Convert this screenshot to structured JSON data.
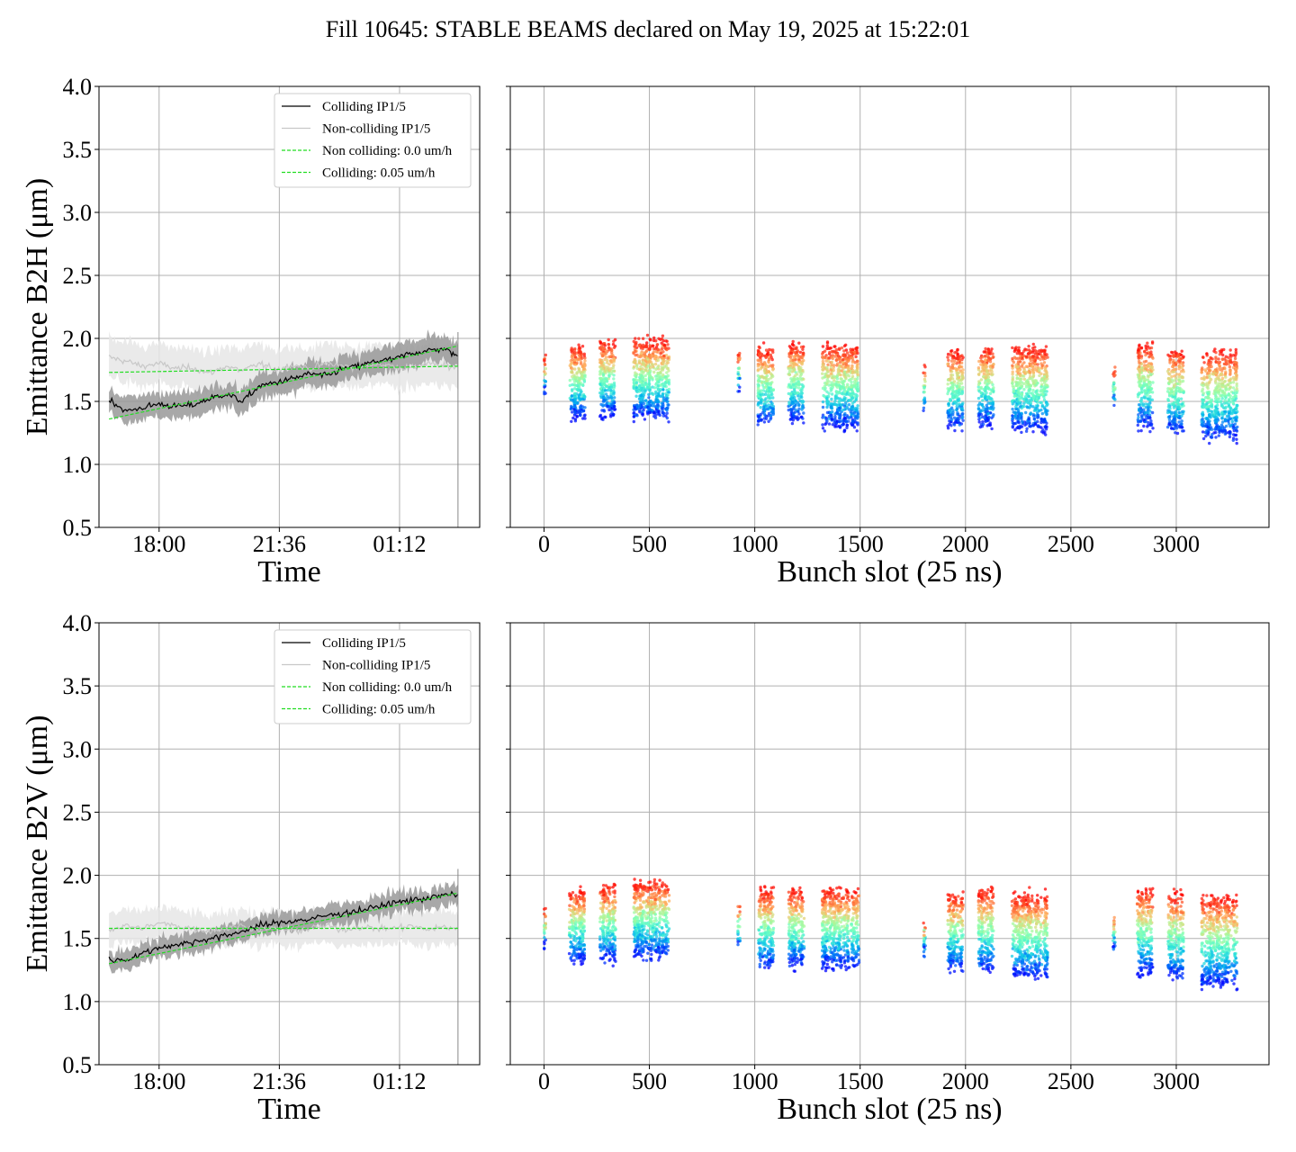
{
  "title": "Fill 10645: STABLE BEAMS declared on May 19, 2025 at 15:22:01",
  "colors": {
    "colliding": "#000000",
    "non_colliding": "#c8c8c8",
    "fit": "#22dd22",
    "band_colliding": "#999999",
    "band_non_colliding": "#e6e6e6",
    "grid": "#b0b0b0"
  },
  "chart_data": [
    {
      "type": "line",
      "panel": "top-left",
      "xlabel": "Time",
      "ylabel": "Emittance B2H (μm)",
      "x_ticks": [
        "18:00",
        "21:36",
        "01:12"
      ],
      "x_tick_positions_hours": [
        18.0,
        21.6,
        25.2
      ],
      "xlim_hours": [
        16.2,
        27.6
      ],
      "ylim": [
        0.5,
        4.0
      ],
      "y_ticks": [
        "0.5",
        "1.0",
        "1.5",
        "2.0",
        "2.5",
        "3.0",
        "3.5",
        "4.0"
      ],
      "grid": true,
      "legend_position": "top-right",
      "legend": [
        "Colliding IP1/5",
        "Non-colliding IP1/5",
        "Non colliding: 0.0 um/h",
        "Colliding: 0.05 um/h"
      ],
      "colliding": {
        "x_hours": [
          16.5,
          17.0,
          17.5,
          18.0,
          18.5,
          19.0,
          19.5,
          20.0,
          20.5,
          21.0,
          21.5,
          22.0,
          22.5,
          23.0,
          23.5,
          24.0,
          24.5,
          25.0,
          25.5,
          26.0,
          26.5,
          26.95
        ],
        "values": [
          1.52,
          1.42,
          1.45,
          1.48,
          1.46,
          1.47,
          1.52,
          1.56,
          1.5,
          1.62,
          1.65,
          1.68,
          1.72,
          1.7,
          1.76,
          1.78,
          1.82,
          1.83,
          1.88,
          1.9,
          1.92,
          1.86
        ],
        "band_halfwidth": 0.1
      },
      "non_colliding": {
        "x_hours": [
          16.5,
          17.0,
          17.5,
          18.0,
          18.5,
          19.0,
          19.5,
          20.0,
          20.5,
          21.0,
          21.5,
          22.0,
          22.5,
          23.0,
          23.5,
          24.0,
          24.5,
          25.0,
          25.5,
          26.0,
          26.5,
          26.95
        ],
        "values": [
          1.85,
          1.82,
          1.78,
          1.8,
          1.76,
          1.77,
          1.72,
          1.78,
          1.74,
          1.8,
          1.75,
          1.79,
          1.76,
          1.8,
          1.78,
          1.77,
          1.8,
          1.78,
          1.76,
          1.8,
          1.78,
          1.77
        ],
        "band_halfwidth": 0.16
      },
      "fit_non_colliding": {
        "x_hours": [
          16.5,
          26.95
        ],
        "values": [
          1.73,
          1.78
        ]
      },
      "fit_colliding": {
        "x_hours": [
          16.5,
          26.95
        ],
        "values": [
          1.36,
          1.94
        ]
      }
    },
    {
      "type": "scatter",
      "panel": "top-right",
      "xlabel": "Bunch slot (25 ns)",
      "x_ticks": [
        "0",
        "500",
        "1000",
        "1500",
        "2000",
        "2500",
        "3000"
      ],
      "xlim": [
        -160,
        3440
      ],
      "ylim": [
        0.5,
        4.0
      ],
      "grid": true,
      "colormap": "rainbow",
      "trains": [
        {
          "x_range": [
            0,
            8
          ],
          "center": 1.72,
          "spread": 0.16
        },
        {
          "x_range": [
            120,
            195
          ],
          "center": 1.65,
          "spread": 0.3
        },
        {
          "x_range": [
            265,
            340
          ],
          "center": 1.68,
          "spread": 0.32
        },
        {
          "x_range": [
            425,
            595
          ],
          "center": 1.68,
          "spread": 0.33
        },
        {
          "x_range": [
            920,
            930
          ],
          "center": 1.75,
          "spread": 0.15
        },
        {
          "x_range": [
            1015,
            1090
          ],
          "center": 1.62,
          "spread": 0.32
        },
        {
          "x_range": [
            1160,
            1235
          ],
          "center": 1.65,
          "spread": 0.33
        },
        {
          "x_range": [
            1320,
            1495
          ],
          "center": 1.62,
          "spread": 0.35
        },
        {
          "x_range": [
            1800,
            1810
          ],
          "center": 1.6,
          "spread": 0.18
        },
        {
          "x_range": [
            1915,
            1990
          ],
          "center": 1.6,
          "spread": 0.32
        },
        {
          "x_range": [
            2060,
            2135
          ],
          "center": 1.62,
          "spread": 0.33
        },
        {
          "x_range": [
            2220,
            2390
          ],
          "center": 1.6,
          "spread": 0.35
        },
        {
          "x_range": [
            2700,
            2710
          ],
          "center": 1.62,
          "spread": 0.15
        },
        {
          "x_range": [
            2815,
            2890
          ],
          "center": 1.62,
          "spread": 0.35
        },
        {
          "x_range": [
            2960,
            3035
          ],
          "center": 1.58,
          "spread": 0.36
        },
        {
          "x_range": [
            3120,
            3290
          ],
          "center": 1.55,
          "spread": 0.37
        }
      ]
    },
    {
      "type": "line",
      "panel": "bottom-left",
      "xlabel": "Time",
      "ylabel": "Emittance B2V (μm)",
      "x_ticks": [
        "18:00",
        "21:36",
        "01:12"
      ],
      "x_tick_positions_hours": [
        18.0,
        21.6,
        25.2
      ],
      "xlim_hours": [
        16.2,
        27.6
      ],
      "ylim": [
        0.5,
        4.0
      ],
      "y_ticks": [
        "0.5",
        "1.0",
        "1.5",
        "2.0",
        "2.5",
        "3.0",
        "3.5",
        "4.0"
      ],
      "grid": true,
      "legend_position": "top-right",
      "legend": [
        "Colliding IP1/5",
        "Non-colliding IP1/5",
        "Non colliding: 0.0 um/h",
        "Colliding: 0.05 um/h"
      ],
      "colliding": {
        "x_hours": [
          16.5,
          17.0,
          17.5,
          18.0,
          18.5,
          19.0,
          19.5,
          20.0,
          20.5,
          21.0,
          21.5,
          22.0,
          22.5,
          23.0,
          23.5,
          24.0,
          24.5,
          25.0,
          25.5,
          26.0,
          26.5,
          26.95
        ],
        "values": [
          1.33,
          1.33,
          1.38,
          1.43,
          1.45,
          1.47,
          1.5,
          1.52,
          1.56,
          1.6,
          1.62,
          1.64,
          1.65,
          1.68,
          1.7,
          1.72,
          1.75,
          1.78,
          1.8,
          1.82,
          1.84,
          1.85
        ],
        "band_halfwidth": 0.08
      },
      "non_colliding": {
        "x_hours": [
          16.5,
          17.0,
          17.5,
          18.0,
          18.5,
          19.0,
          19.5,
          20.0,
          20.5,
          21.0,
          21.5,
          22.0,
          22.5,
          23.0,
          23.5,
          24.0,
          24.5,
          25.0,
          25.5,
          26.0,
          26.5,
          26.95
        ],
        "values": [
          1.57,
          1.6,
          1.58,
          1.62,
          1.6,
          1.58,
          1.56,
          1.58,
          1.6,
          1.57,
          1.58,
          1.56,
          1.58,
          1.6,
          1.57,
          1.59,
          1.58,
          1.58,
          1.6,
          1.57,
          1.59,
          1.58
        ],
        "band_halfwidth": 0.13
      },
      "fit_non_colliding": {
        "x_hours": [
          16.5,
          26.95
        ],
        "values": [
          1.58,
          1.58
        ]
      },
      "fit_colliding": {
        "x_hours": [
          16.5,
          26.95
        ],
        "values": [
          1.3,
          1.86
        ]
      }
    },
    {
      "type": "scatter",
      "panel": "bottom-right",
      "xlabel": "Bunch slot (25 ns)",
      "x_ticks": [
        "0",
        "500",
        "1000",
        "1500",
        "2000",
        "2500",
        "3000"
      ],
      "xlim": [
        -160,
        3440
      ],
      "ylim": [
        0.5,
        4.0
      ],
      "grid": true,
      "colormap": "rainbow",
      "trains": [
        {
          "x_range": [
            0,
            8
          ],
          "center": 1.58,
          "spread": 0.18
        },
        {
          "x_range": [
            120,
            195
          ],
          "center": 1.6,
          "spread": 0.3
        },
        {
          "x_range": [
            265,
            340
          ],
          "center": 1.62,
          "spread": 0.32
        },
        {
          "x_range": [
            425,
            595
          ],
          "center": 1.65,
          "spread": 0.32
        },
        {
          "x_range": [
            920,
            930
          ],
          "center": 1.6,
          "spread": 0.18
        },
        {
          "x_range": [
            1015,
            1090
          ],
          "center": 1.58,
          "spread": 0.33
        },
        {
          "x_range": [
            1160,
            1235
          ],
          "center": 1.58,
          "spread": 0.32
        },
        {
          "x_range": [
            1320,
            1495
          ],
          "center": 1.58,
          "spread": 0.33
        },
        {
          "x_range": [
            1800,
            1810
          ],
          "center": 1.5,
          "spread": 0.12
        },
        {
          "x_range": [
            1915,
            1990
          ],
          "center": 1.55,
          "spread": 0.32
        },
        {
          "x_range": [
            2060,
            2135
          ],
          "center": 1.57,
          "spread": 0.35
        },
        {
          "x_range": [
            2220,
            2390
          ],
          "center": 1.52,
          "spread": 0.35
        },
        {
          "x_range": [
            2700,
            2710
          ],
          "center": 1.55,
          "spread": 0.15
        },
        {
          "x_range": [
            2815,
            2890
          ],
          "center": 1.55,
          "spread": 0.36
        },
        {
          "x_range": [
            2960,
            3035
          ],
          "center": 1.52,
          "spread": 0.36
        },
        {
          "x_range": [
            3120,
            3290
          ],
          "center": 1.48,
          "spread": 0.38
        }
      ]
    }
  ]
}
